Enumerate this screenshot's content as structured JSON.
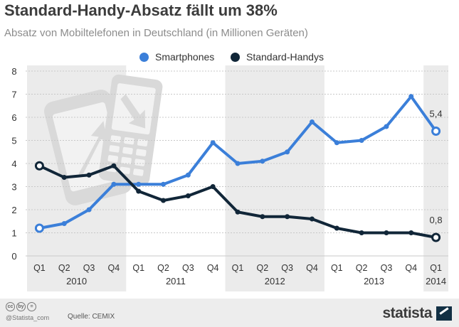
{
  "header": {
    "title": "Standard-Handy-Absatz fällt um 38%",
    "subtitle": "Absatz von Mobiltelefonen in Deutschland (in Millionen Geräten)"
  },
  "footer": {
    "handle": "@Statista_com",
    "source": "Quelle: CEMIX",
    "brand": "statista",
    "cc_icons": [
      "cc",
      "by",
      "="
    ]
  },
  "chart_data": {
    "type": "line",
    "categories": [
      "Q1",
      "Q2",
      "Q3",
      "Q4",
      "Q1",
      "Q2",
      "Q3",
      "Q4",
      "Q1",
      "Q2",
      "Q3",
      "Q4",
      "Q1",
      "Q2",
      "Q3",
      "Q4",
      "Q1"
    ],
    "year_labels": [
      {
        "label": "2010",
        "start": 0,
        "end": 3
      },
      {
        "label": "2011",
        "start": 4,
        "end": 7
      },
      {
        "label": "2012",
        "start": 8,
        "end": 11
      },
      {
        "label": "2013",
        "start": 12,
        "end": 15
      },
      {
        "label": "2014",
        "start": 16,
        "end": 16
      }
    ],
    "shaded_years": [
      "2010",
      "2012",
      "2014"
    ],
    "series": [
      {
        "name": "Smartphones",
        "color": "#3b7fd9",
        "values": [
          1.2,
          1.4,
          2.0,
          3.1,
          3.1,
          3.1,
          3.5,
          4.9,
          4.0,
          4.1,
          4.5,
          5.8,
          4.9,
          5.0,
          5.6,
          6.9,
          5.4
        ]
      },
      {
        "name": "Standard-Handys",
        "color": "#112638",
        "values": [
          3.9,
          3.4,
          3.5,
          3.9,
          2.8,
          2.4,
          2.6,
          3.0,
          1.9,
          1.7,
          1.7,
          1.6,
          1.2,
          1.0,
          1.0,
          1.0,
          0.8
        ]
      }
    ],
    "data_labels": [
      {
        "series": 0,
        "index": 16,
        "text": "5,4"
      },
      {
        "series": 1,
        "index": 16,
        "text": "0,8"
      }
    ],
    "yticks": [
      "0",
      "1",
      "2",
      "3",
      "4",
      "5",
      "6",
      "7",
      "8"
    ],
    "ylim": [
      0,
      8
    ],
    "grid": true,
    "legend": "top-center",
    "background_icons": [
      "phone-arrow-up-icon",
      "phone-arrow-down-icon"
    ]
  }
}
